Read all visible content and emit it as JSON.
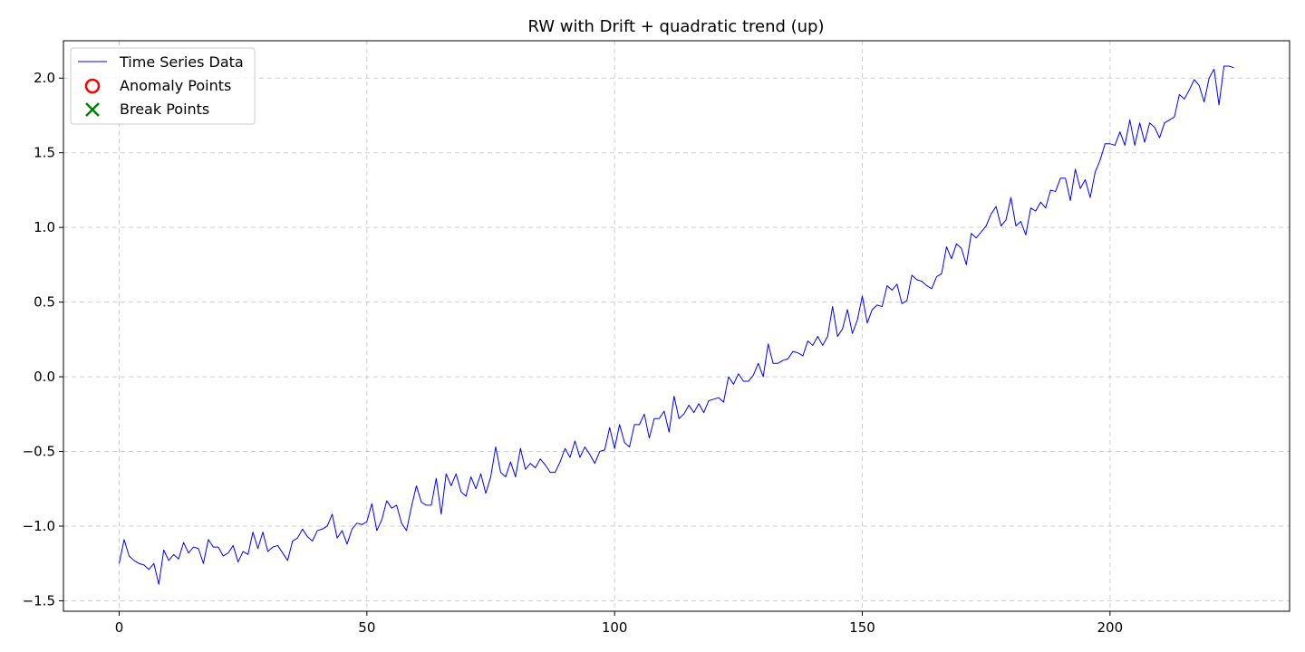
{
  "chart_data": {
    "type": "line",
    "title": "RW with Drift + quadratic trend (up)",
    "xlabel": "",
    "ylabel": "",
    "xlim": [
      -11.25,
      236.25
    ],
    "ylim": [
      -1.57,
      2.25
    ],
    "x_ticks": [
      0,
      50,
      100,
      150,
      200
    ],
    "y_ticks": [
      -1.5,
      -1.0,
      -0.5,
      0.0,
      0.5,
      1.0,
      1.5,
      2.0
    ],
    "x_tick_labels": [
      "0",
      "50",
      "100",
      "150",
      "200"
    ],
    "y_tick_labels": [
      "−1.5",
      "−1.0",
      "−0.5",
      "0.0",
      "0.5",
      "1.0",
      "1.5",
      "2.0"
    ],
    "grid": true,
    "legend_position": "top-left",
    "legend": [
      {
        "label": "Time Series Data",
        "marker": "line",
        "color": "#0000ff"
      },
      {
        "label": "Anomaly Points",
        "marker": "circle",
        "color": "#ff0000"
      },
      {
        "label": "Break Points",
        "marker": "x",
        "color": "#008000"
      }
    ],
    "series": [
      {
        "name": "Time Series Data",
        "color": "#0000ff",
        "x_start": 0,
        "x_step": 1,
        "values": [
          -1.25,
          -1.09,
          -1.2,
          -1.23,
          -1.25,
          -1.26,
          -1.29,
          -1.25,
          -1.39,
          -1.16,
          -1.23,
          -1.19,
          -1.22,
          -1.11,
          -1.18,
          -1.14,
          -1.15,
          -1.25,
          -1.09,
          -1.14,
          -1.14,
          -1.2,
          -1.18,
          -1.13,
          -1.24,
          -1.17,
          -1.19,
          -1.04,
          -1.15,
          -1.04,
          -1.17,
          -1.14,
          -1.13,
          -1.18,
          -1.23,
          -1.1,
          -1.08,
          -1.02,
          -1.07,
          -1.1,
          -1.03,
          -1.02,
          -1.0,
          -0.92,
          -1.08,
          -1.03,
          -1.12,
          -1.02,
          -0.98,
          -0.99,
          -0.97,
          -0.85,
          -1.03,
          -0.96,
          -0.83,
          -0.88,
          -0.86,
          -0.98,
          -1.03,
          -0.87,
          -0.73,
          -0.84,
          -0.86,
          -0.86,
          -0.68,
          -0.92,
          -0.65,
          -0.73,
          -0.65,
          -0.77,
          -0.8,
          -0.67,
          -0.75,
          -0.65,
          -0.78,
          -0.67,
          -0.47,
          -0.64,
          -0.67,
          -0.57,
          -0.67,
          -0.48,
          -0.62,
          -0.58,
          -0.61,
          -0.55,
          -0.59,
          -0.64,
          -0.64,
          -0.57,
          -0.48,
          -0.54,
          -0.43,
          -0.54,
          -0.47,
          -0.52,
          -0.58,
          -0.5,
          -0.49,
          -0.34,
          -0.48,
          -0.32,
          -0.44,
          -0.47,
          -0.32,
          -0.32,
          -0.25,
          -0.41,
          -0.28,
          -0.28,
          -0.23,
          -0.37,
          -0.13,
          -0.28,
          -0.25,
          -0.19,
          -0.24,
          -0.18,
          -0.24,
          -0.16,
          -0.15,
          -0.14,
          -0.17,
          0.0,
          -0.05,
          0.02,
          -0.03,
          -0.03,
          0.01,
          0.09,
          0.0,
          0.22,
          0.09,
          0.09,
          0.11,
          0.12,
          0.17,
          0.16,
          0.14,
          0.24,
          0.21,
          0.27,
          0.21,
          0.27,
          0.47,
          0.27,
          0.32,
          0.45,
          0.29,
          0.38,
          0.54,
          0.36,
          0.45,
          0.48,
          0.47,
          0.61,
          0.58,
          0.62,
          0.49,
          0.51,
          0.68,
          0.65,
          0.64,
          0.61,
          0.59,
          0.67,
          0.69,
          0.87,
          0.79,
          0.89,
          0.86,
          0.75,
          0.96,
          0.93,
          0.97,
          1.01,
          1.09,
          1.14,
          1.01,
          1.05,
          1.2,
          1.01,
          1.04,
          0.95,
          1.13,
          1.11,
          1.17,
          1.13,
          1.25,
          1.24,
          1.33,
          1.33,
          1.18,
          1.39,
          1.26,
          1.32,
          1.2,
          1.37,
          1.45,
          1.56,
          1.56,
          1.55,
          1.64,
          1.55,
          1.72,
          1.55,
          1.7,
          1.57,
          1.7,
          1.67,
          1.6,
          1.7,
          1.72,
          1.74,
          1.89,
          1.86,
          1.92,
          1.99,
          1.95,
          1.84,
          2.0,
          2.06,
          1.82,
          2.08,
          2.08,
          2.07
        ]
      }
    ]
  }
}
